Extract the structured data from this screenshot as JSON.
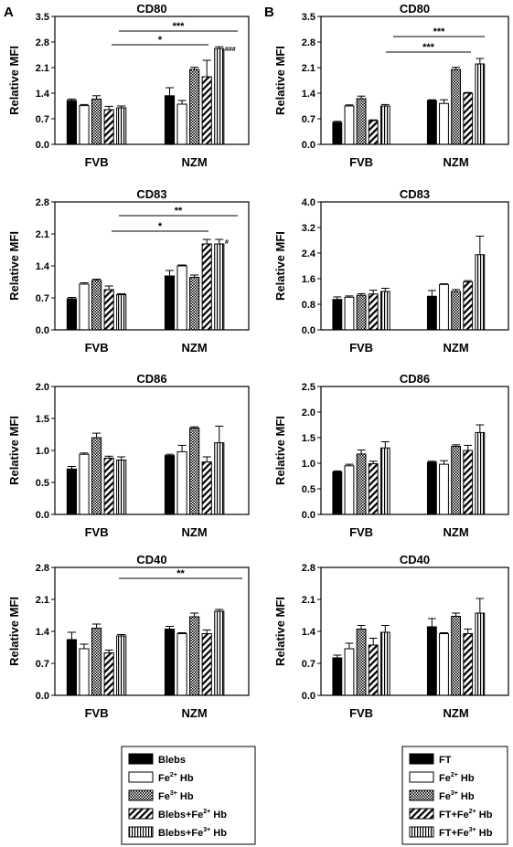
{
  "figure": {
    "panel_labels": [
      "A",
      "B"
    ],
    "y_axis_label": "Relative MFI",
    "groups": [
      "FVB",
      "NZM"
    ]
  },
  "legends": [
    {
      "items": [
        {
          "pre": "Blebs",
          "sup": "",
          "post": ""
        },
        {
          "pre": "Fe",
          "sup": "2+",
          "post": " Hb"
        },
        {
          "pre": "Fe",
          "sup": "3+",
          "post": " Hb"
        },
        {
          "pre": "Blebs+Fe",
          "sup": "2+",
          "post": " Hb"
        },
        {
          "pre": "Blebs+Fe",
          "sup": "3+",
          "post": " Hb"
        }
      ]
    },
    {
      "items": [
        {
          "pre": "FT",
          "sup": "",
          "post": ""
        },
        {
          "pre": "Fe",
          "sup": "2+",
          "post": " Hb"
        },
        {
          "pre": "Fe",
          "sup": "3+",
          "post": " Hb"
        },
        {
          "pre": "FT+Fe",
          "sup": "2+",
          "post": " Hb"
        },
        {
          "pre": "FT+Fe",
          "sup": "3+",
          "post": " Hb"
        }
      ]
    }
  ],
  "chart_data": [
    {
      "type": "bar",
      "panel": "A",
      "title": "CD80",
      "ylabel": "Relative MFI",
      "categories": [
        "FVB",
        "NZM"
      ],
      "ylim": [
        0,
        3.5
      ],
      "yticks": [
        "0.0",
        "0.7",
        "1.4",
        "2.1",
        "2.8",
        "3.5"
      ],
      "series": [
        {
          "name": "Blebs",
          "values": [
            1.2,
            1.33
          ],
          "errors": [
            0.04,
            0.22
          ]
        },
        {
          "name": "Fe2+ Hb",
          "values": [
            1.06,
            1.1
          ],
          "errors": [
            0.03,
            0.1
          ]
        },
        {
          "name": "Fe3+ Hb",
          "values": [
            1.24,
            2.05
          ],
          "errors": [
            0.09,
            0.06
          ]
        },
        {
          "name": "Blebs+Fe2+ Hb",
          "values": [
            0.95,
            1.85
          ],
          "errors": [
            0.09,
            0.45
          ]
        },
        {
          "name": "Blebs+Fe3+ Hb",
          "values": [
            1.0,
            2.62
          ],
          "errors": [
            0.05,
            0.05
          ]
        }
      ],
      "annotations": [
        {
          "text": "***",
          "type": "bracket"
        },
        {
          "text": "*",
          "type": "bracket"
        },
        {
          "text": "###",
          "type": "bar-mark"
        }
      ]
    },
    {
      "type": "bar",
      "panel": "A",
      "title": "CD83",
      "ylabel": "Relative MFI",
      "categories": [
        "FVB",
        "NZM"
      ],
      "ylim": [
        0,
        2.8
      ],
      "yticks": [
        "0.0",
        "0.7",
        "1.4",
        "2.1",
        "2.8"
      ],
      "series": [
        {
          "name": "Blebs",
          "values": [
            0.68,
            1.18
          ],
          "errors": [
            0.03,
            0.12
          ]
        },
        {
          "name": "Fe2+ Hb",
          "values": [
            1.0,
            1.4
          ],
          "errors": [
            0.03,
            0.02
          ]
        },
        {
          "name": "Fe3+ Hb",
          "values": [
            1.08,
            1.15
          ],
          "errors": [
            0.03,
            0.05
          ]
        },
        {
          "name": "Blebs+Fe2+ Hb",
          "values": [
            0.88,
            1.88
          ],
          "errors": [
            0.08,
            0.1
          ]
        },
        {
          "name": "Blebs+Fe3+ Hb",
          "values": [
            0.77,
            1.88
          ],
          "errors": [
            0.02,
            0.1
          ]
        }
      ],
      "annotations": [
        {
          "text": "**",
          "type": "bracket"
        },
        {
          "text": "*",
          "type": "bracket"
        },
        {
          "text": "#",
          "type": "bar-mark"
        }
      ]
    },
    {
      "type": "bar",
      "panel": "A",
      "title": "CD86",
      "ylabel": "Relative MFI",
      "categories": [
        "FVB",
        "NZM"
      ],
      "ylim": [
        0,
        2.0
      ],
      "yticks": [
        "0.0",
        "0.5",
        "1.0",
        "1.5",
        "2.0"
      ],
      "series": [
        {
          "name": "Blebs",
          "values": [
            0.71,
            0.92
          ],
          "errors": [
            0.04,
            0.02
          ]
        },
        {
          "name": "Fe2+ Hb",
          "values": [
            0.94,
            0.98
          ],
          "errors": [
            0.02,
            0.1
          ]
        },
        {
          "name": "Fe3+ Hb",
          "values": [
            1.2,
            1.35
          ],
          "errors": [
            0.07,
            0.02
          ]
        },
        {
          "name": "Blebs+Fe2+ Hb",
          "values": [
            0.88,
            0.82
          ],
          "errors": [
            0.03,
            0.08
          ]
        },
        {
          "name": "Blebs+Fe3+ Hb",
          "values": [
            0.85,
            1.12
          ],
          "errors": [
            0.05,
            0.26
          ]
        }
      ],
      "annotations": []
    },
    {
      "type": "bar",
      "panel": "A",
      "title": "CD40",
      "ylabel": "Relative MFI",
      "categories": [
        "FVB",
        "NZM"
      ],
      "ylim": [
        0,
        2.8
      ],
      "yticks": [
        "0.0",
        "0.7",
        "1.4",
        "2.1",
        "2.8"
      ],
      "series": [
        {
          "name": "Blebs",
          "values": [
            1.22,
            1.45
          ],
          "errors": [
            0.16,
            0.06
          ]
        },
        {
          "name": "Fe2+ Hb",
          "values": [
            1.02,
            1.35
          ],
          "errors": [
            0.1,
            0.02
          ]
        },
        {
          "name": "Fe3+ Hb",
          "values": [
            1.47,
            1.72
          ],
          "errors": [
            0.09,
            0.08
          ]
        },
        {
          "name": "Blebs+Fe2+ Hb",
          "values": [
            0.93,
            1.35
          ],
          "errors": [
            0.06,
            0.08
          ]
        },
        {
          "name": "Blebs+Fe3+ Hb",
          "values": [
            1.3,
            1.84
          ],
          "errors": [
            0.03,
            0.04
          ]
        }
      ],
      "annotations": [
        {
          "text": "**",
          "type": "bracket"
        }
      ]
    },
    {
      "type": "bar",
      "panel": "B",
      "title": "CD80",
      "ylabel": "Relative MFI",
      "categories": [
        "FVB",
        "NZM"
      ],
      "ylim": [
        0,
        3.5
      ],
      "yticks": [
        "0.0",
        "0.7",
        "1.4",
        "2.1",
        "2.8",
        "3.5"
      ],
      "series": [
        {
          "name": "FT",
          "values": [
            0.6,
            1.2
          ],
          "errors": [
            0.03,
            0.02
          ]
        },
        {
          "name": "Fe2+ Hb",
          "values": [
            1.05,
            1.12
          ],
          "errors": [
            0.03,
            0.1
          ]
        },
        {
          "name": "Fe3+ Hb",
          "values": [
            1.25,
            2.05
          ],
          "errors": [
            0.07,
            0.06
          ]
        },
        {
          "name": "FT+Fe2+ Hb",
          "values": [
            0.65,
            1.4
          ],
          "errors": [
            0.02,
            0.02
          ]
        },
        {
          "name": "FT+Fe3+ Hb",
          "values": [
            1.05,
            2.2
          ],
          "errors": [
            0.04,
            0.15
          ]
        }
      ],
      "annotations": [
        {
          "text": "***",
          "type": "bracket"
        },
        {
          "text": "***",
          "type": "bracket"
        }
      ]
    },
    {
      "type": "bar",
      "panel": "B",
      "title": "CD83",
      "ylabel": "Relative MFI",
      "categories": [
        "FVB",
        "NZM"
      ],
      "ylim": [
        0,
        4.0
      ],
      "yticks": [
        "0.0",
        "0.8",
        "1.6",
        "2.4",
        "3.2",
        "4.0"
      ],
      "series": [
        {
          "name": "FT",
          "values": [
            0.95,
            1.05
          ],
          "errors": [
            0.08,
            0.18
          ]
        },
        {
          "name": "Fe2+ Hb",
          "values": [
            1.02,
            1.42
          ],
          "errors": [
            0.04,
            0.02
          ]
        },
        {
          "name": "Fe3+ Hb",
          "values": [
            1.08,
            1.2
          ],
          "errors": [
            0.05,
            0.06
          ]
        },
        {
          "name": "FT+Fe2+ Hb",
          "values": [
            1.12,
            1.5
          ],
          "errors": [
            0.12,
            0.04
          ]
        },
        {
          "name": "FT+Fe3+ Hb",
          "values": [
            1.2,
            2.35
          ],
          "errors": [
            0.1,
            0.58
          ]
        }
      ],
      "annotations": []
    },
    {
      "type": "bar",
      "panel": "B",
      "title": "CD86",
      "ylabel": "Relative MFI",
      "categories": [
        "FVB",
        "NZM"
      ],
      "ylim": [
        0,
        2.5
      ],
      "yticks": [
        "0.0",
        "0.5",
        "1.0",
        "1.5",
        "2.0",
        "2.5"
      ],
      "series": [
        {
          "name": "FT",
          "values": [
            0.83,
            1.02
          ],
          "errors": [
            0.02,
            0.02
          ]
        },
        {
          "name": "Fe2+ Hb",
          "values": [
            0.95,
            0.98
          ],
          "errors": [
            0.03,
            0.07
          ]
        },
        {
          "name": "Fe3+ Hb",
          "values": [
            1.18,
            1.33
          ],
          "errors": [
            0.08,
            0.03
          ]
        },
        {
          "name": "FT+Fe2+ Hb",
          "values": [
            0.99,
            1.25
          ],
          "errors": [
            0.05,
            0.1
          ]
        },
        {
          "name": "FT+Fe3+ Hb",
          "values": [
            1.3,
            1.6
          ],
          "errors": [
            0.12,
            0.15
          ]
        }
      ],
      "annotations": []
    },
    {
      "type": "bar",
      "panel": "B",
      "title": "CD40",
      "ylabel": "Relative MFI",
      "categories": [
        "FVB",
        "NZM"
      ],
      "ylim": [
        0,
        2.8
      ],
      "yticks": [
        "0.0",
        "0.7",
        "1.4",
        "2.1",
        "2.8"
      ],
      "series": [
        {
          "name": "FT",
          "values": [
            0.82,
            1.5
          ],
          "errors": [
            0.06,
            0.18
          ]
        },
        {
          "name": "Fe2+ Hb",
          "values": [
            1.02,
            1.35
          ],
          "errors": [
            0.12,
            0.02
          ]
        },
        {
          "name": "Fe3+ Hb",
          "values": [
            1.45,
            1.73
          ],
          "errors": [
            0.08,
            0.07
          ]
        },
        {
          "name": "FT+Fe2+ Hb",
          "values": [
            1.1,
            1.35
          ],
          "errors": [
            0.15,
            0.1
          ]
        },
        {
          "name": "FT+Fe3+ Hb",
          "values": [
            1.38,
            1.8
          ],
          "errors": [
            0.15,
            0.32
          ]
        }
      ],
      "annotations": []
    }
  ]
}
